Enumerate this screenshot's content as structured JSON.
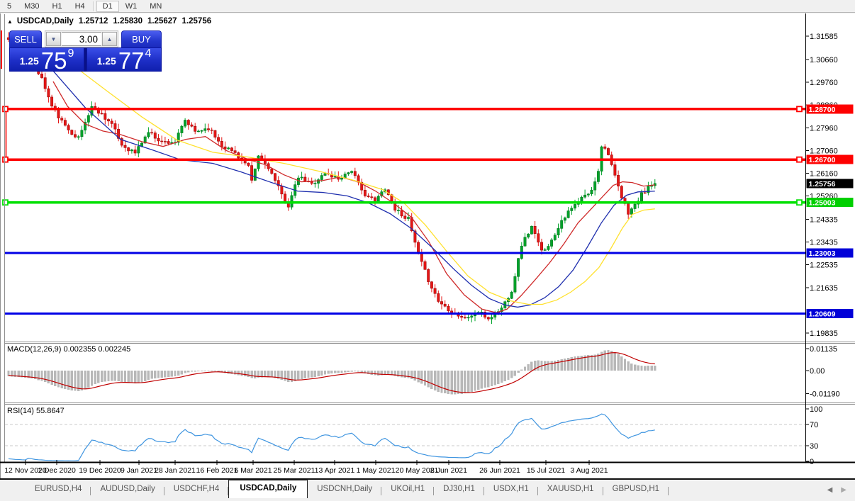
{
  "toolbar": {
    "timeframes": [
      {
        "label": "5",
        "active": false,
        "separator_before": false
      },
      {
        "label": "M30",
        "active": false,
        "separator_before": false
      },
      {
        "label": "H1",
        "active": false,
        "separator_before": false
      },
      {
        "label": "H4",
        "active": false,
        "separator_before": false
      },
      {
        "label": "D1",
        "active": true,
        "separator_before": true
      },
      {
        "label": "W1",
        "active": false,
        "separator_before": false
      },
      {
        "label": "MN",
        "active": false,
        "separator_before": false
      }
    ]
  },
  "chart_header": {
    "collapse_icon": "▲",
    "symbol": "USDCAD,Daily",
    "open": "1.25712",
    "high": "1.25830",
    "low": "1.25627",
    "close": "1.25756"
  },
  "trade_panel": {
    "sell_label": "SELL",
    "buy_label": "BUY",
    "volume": "3.00",
    "volume_down_icon": "▼",
    "volume_up_icon": "▲",
    "sell_price": {
      "prefix": "1.25",
      "big": "75",
      "sup": "9"
    },
    "buy_price": {
      "prefix": "1.25",
      "big": "77",
      "sup": "4"
    }
  },
  "macd": {
    "label": "MACD(12,26,9) 0.002355 0.002245",
    "axis": [
      "0.01135",
      "0.00",
      "-0.01190"
    ]
  },
  "rsi": {
    "label": "RSI(14) 55.8647",
    "axis": [
      "100",
      "70",
      "30",
      "0"
    ]
  },
  "tabs": {
    "items": [
      {
        "label": "EURUSD,H4",
        "active": false
      },
      {
        "label": "AUDUSD,Daily",
        "active": false
      },
      {
        "label": "USDCHF,H4",
        "active": false
      },
      {
        "label": "USDCAD,Daily",
        "active": true
      },
      {
        "label": "USDCNH,Daily",
        "active": false
      },
      {
        "label": "UKOil,H1",
        "active": false
      },
      {
        "label": "DJ30,H1",
        "active": false
      },
      {
        "label": "USDX,H1",
        "active": false
      },
      {
        "label": "XAUUSD,H1",
        "active": false
      },
      {
        "label": "GBPUSD,H1",
        "active": false
      }
    ],
    "scroll_left_icon": "◀",
    "scroll_right_icon": "▶"
  },
  "colors": {
    "bull": "#00a32a",
    "bull_dark": "#006a18",
    "bear": "#e51616",
    "bear_dark": "#8f0606",
    "ma_fast": "#cf2a2a",
    "ma_mid": "#1f2fae",
    "ma_slow": "#ffe12e",
    "level_red": "#fe0100",
    "level_green": "#00e002",
    "level_blue": "#0100e6",
    "tag_red": "#fe0100",
    "tag_green": "#00cf00",
    "tag_blue": "#0100d8",
    "tag_black": "#000000",
    "macd_hist": "#b8b8b8",
    "macd_signal": "#c00000",
    "rsi_line": "#3f95e0",
    "grid_dash": "#c9c9c9"
  },
  "chart_data": {
    "type": "candlestick",
    "symbol": "USDCAD",
    "timeframe": "Daily",
    "ohlc_display": {
      "open": 1.25712,
      "high": 1.2583,
      "low": 1.25627,
      "close": 1.25756
    },
    "current_price": {
      "value": 1.25756,
      "label": "1.25756"
    },
    "y_axis": {
      "min": 1.19835,
      "max": 1.31585,
      "ticks": [
        "1.31585",
        "1.30660",
        "1.29760",
        "1.28860",
        "1.27960",
        "1.27060",
        "1.26160",
        "1.25260",
        "1.24335",
        "1.23435",
        "1.22535",
        "1.21635",
        "1.19835"
      ]
    },
    "x_axis": {
      "labels": [
        [
          "12 Nov 2020",
          36
        ],
        [
          "1 Dec 2020",
          80
        ],
        [
          "19 Dec 2020",
          141
        ],
        [
          "9 Jan 2021",
          196
        ],
        [
          "28 Jan 2021",
          247
        ],
        [
          "16 Feb 2021",
          306
        ],
        [
          "6 Mar 2021",
          357
        ],
        [
          "25 Mar 2021",
          415
        ],
        [
          "13 Apr 2021",
          472
        ],
        [
          "1 May 2021",
          530
        ],
        [
          "20 May 2021",
          588
        ],
        [
          "8 Jun 2021",
          633
        ],
        [
          "26 Jun 2021",
          705
        ],
        [
          "15 Jul 2021",
          770
        ],
        [
          "3 Aug 2021",
          831
        ]
      ]
    },
    "levels": [
      {
        "price": 1.287,
        "label": "1.28700",
        "color_key": "red",
        "thickness": 3.4,
        "handles": true
      },
      {
        "price": 1.267,
        "label": "1.26700",
        "color_key": "red",
        "thickness": 3.4,
        "handles": true
      },
      {
        "price": 1.25003,
        "label": "1.25003",
        "color_key": "green",
        "thickness": 3.6,
        "handles": true
      },
      {
        "price": 1.23003,
        "label": "1.23003",
        "color_key": "blue",
        "thickness": 2.8,
        "handles": false
      },
      {
        "price": 1.20609,
        "label": "1.20609",
        "color_key": "blue",
        "thickness": 2.8,
        "handles": false
      }
    ],
    "series_spec": {
      "days": 195,
      "seed": 11,
      "noise": 0.0017,
      "wick": 0.0022,
      "close_waypoints": [
        [
          -26,
          1.328
        ],
        [
          -13,
          1.323
        ],
        [
          0,
          1.314
        ],
        [
          6,
          1.309
        ],
        [
          10,
          1.299
        ],
        [
          13,
          1.288
        ],
        [
          17,
          1.28
        ],
        [
          21,
          1.2755
        ],
        [
          25,
          1.288
        ],
        [
          28,
          1.285
        ],
        [
          31,
          1.281
        ],
        [
          34,
          1.2727
        ],
        [
          38,
          1.2697
        ],
        [
          42,
          1.278
        ],
        [
          46,
          1.274
        ],
        [
          50,
          1.274
        ],
        [
          53,
          1.2824
        ],
        [
          56,
          1.278
        ],
        [
          60,
          1.2796
        ],
        [
          64,
          1.2727
        ],
        [
          68,
          1.2697
        ],
        [
          72,
          1.264
        ],
        [
          73,
          1.258
        ],
        [
          75,
          1.2683
        ],
        [
          78,
          1.264
        ],
        [
          82,
          1.253
        ],
        [
          84,
          1.2488
        ],
        [
          87,
          1.26
        ],
        [
          91,
          1.2573
        ],
        [
          95,
          1.2615
        ],
        [
          99,
          1.2595
        ],
        [
          103,
          1.2629
        ],
        [
          106,
          1.2545
        ],
        [
          110,
          1.2503
        ],
        [
          113,
          1.2559
        ],
        [
          116,
          1.2475
        ],
        [
          120,
          1.2433
        ],
        [
          123,
          1.2292
        ],
        [
          126,
          1.2194
        ],
        [
          129,
          1.211
        ],
        [
          133,
          1.2068
        ],
        [
          137,
          1.204
        ],
        [
          141,
          1.2068
        ],
        [
          144,
          1.204
        ],
        [
          148,
          1.2082
        ],
        [
          151,
          1.2152
        ],
        [
          154,
          1.2334
        ],
        [
          157,
          1.2404
        ],
        [
          160,
          1.2306
        ],
        [
          163,
          1.2348
        ],
        [
          166,
          1.2432
        ],
        [
          169,
          1.2475
        ],
        [
          172,
          1.2517
        ],
        [
          175,
          1.2545
        ],
        [
          177,
          1.2629
        ],
        [
          178,
          1.2727
        ],
        [
          180,
          1.2697
        ],
        [
          182,
          1.26
        ],
        [
          184,
          1.2517
        ],
        [
          186,
          1.2461
        ],
        [
          188,
          1.2489
        ],
        [
          190,
          1.2531
        ],
        [
          192,
          1.2559
        ],
        [
          194,
          1.25756
        ]
      ]
    },
    "moving_averages": [
      {
        "name": "ma-fast-red",
        "color_key": "ma_fast",
        "points": [
          [
            13.4,
            1.2979
          ],
          [
            17.7,
            1.2881
          ],
          [
            23,
            1.2811
          ],
          [
            28.3,
            1.2783
          ],
          [
            33.6,
            1.2769
          ],
          [
            40,
            1.2741
          ],
          [
            46.4,
            1.2722
          ],
          [
            53.2,
            1.275
          ],
          [
            59.1,
            1.2761
          ],
          [
            65.5,
            1.2705
          ],
          [
            71.9,
            1.2671
          ],
          [
            77.2,
            1.2649
          ],
          [
            82.6,
            1.261
          ],
          [
            87.9,
            1.2582
          ],
          [
            94.3,
            1.2587
          ],
          [
            99.6,
            1.2601
          ],
          [
            104.9,
            1.2582
          ],
          [
            110.2,
            1.2545
          ],
          [
            115.5,
            1.2498
          ],
          [
            120.9,
            1.2442
          ],
          [
            126.2,
            1.2344
          ],
          [
            131.5,
            1.2218
          ],
          [
            136.8,
            1.2134
          ],
          [
            142.1,
            1.2078
          ],
          [
            146.4,
            1.2064
          ],
          [
            149.6,
            1.2078
          ],
          [
            153.8,
            1.2131
          ],
          [
            158.1,
            1.2195
          ],
          [
            162.3,
            1.226
          ],
          [
            166.6,
            1.2335
          ],
          [
            170.9,
            1.2419
          ],
          [
            175.1,
            1.2478
          ],
          [
            178.7,
            1.2529
          ],
          [
            181.5,
            1.2568
          ],
          [
            184.3,
            1.2582
          ],
          [
            187.2,
            1.2579
          ],
          [
            190.6,
            1.2565
          ],
          [
            194,
            1.257
          ]
        ]
      },
      {
        "name": "ma-mid-blue",
        "color_key": "ma_mid",
        "points": [
          [
            13.4,
            1.3021
          ],
          [
            23,
            1.2876
          ],
          [
            33.6,
            1.275
          ],
          [
            43.2,
            1.2708
          ],
          [
            51.7,
            1.2669
          ],
          [
            61.3,
            1.2655
          ],
          [
            69.8,
            1.2621
          ],
          [
            78.3,
            1.2582
          ],
          [
            86.8,
            1.2545
          ],
          [
            94.3,
            1.254
          ],
          [
            101.7,
            1.2526
          ],
          [
            108.1,
            1.2498
          ],
          [
            114.5,
            1.2456
          ],
          [
            120.9,
            1.2397
          ],
          [
            127.2,
            1.2321
          ],
          [
            133.6,
            1.2237
          ],
          [
            138.9,
            1.2173
          ],
          [
            144.3,
            1.212
          ],
          [
            148.9,
            1.2095
          ],
          [
            152.8,
            1.2086
          ],
          [
            156.6,
            1.2095
          ],
          [
            160.9,
            1.2123
          ],
          [
            165.1,
            1.2167
          ],
          [
            169.4,
            1.2232
          ],
          [
            173.6,
            1.2321
          ],
          [
            177.9,
            1.2419
          ],
          [
            181.7,
            1.2489
          ],
          [
            185.5,
            1.2529
          ],
          [
            188.9,
            1.2542
          ],
          [
            194,
            1.2545
          ]
        ]
      },
      {
        "name": "ma-slow-yellow",
        "color_key": "ma_slow",
        "points": [
          [
            20.4,
            1.3033
          ],
          [
            29.4,
            1.2943
          ],
          [
            40,
            1.2839
          ],
          [
            50.6,
            1.2747
          ],
          [
            61.3,
            1.2699
          ],
          [
            71.9,
            1.268
          ],
          [
            82.6,
            1.2655
          ],
          [
            93.2,
            1.2624
          ],
          [
            103.8,
            1.2587
          ],
          [
            112.3,
            1.2551
          ],
          [
            118.7,
            1.2498
          ],
          [
            125.1,
            1.2411
          ],
          [
            131.5,
            1.2307
          ],
          [
            137.9,
            1.2209
          ],
          [
            144.3,
            1.2145
          ],
          [
            150.6,
            1.2111
          ],
          [
            156,
            1.2097
          ],
          [
            160.2,
            1.2097
          ],
          [
            164.5,
            1.2114
          ],
          [
            168.7,
            1.2145
          ],
          [
            173,
            1.2187
          ],
          [
            177.2,
            1.2243
          ],
          [
            180.9,
            1.2321
          ],
          [
            184.3,
            1.24
          ],
          [
            187.2,
            1.2453
          ],
          [
            190.6,
            1.247
          ],
          [
            194,
            1.2475
          ]
        ]
      }
    ],
    "indicators": {
      "macd": {
        "fast": 12,
        "slow": 26,
        "signal": 9,
        "value": 0.002355,
        "signal_value": 0.002245,
        "axis_max": 0.01135,
        "axis_min": -0.0119
      },
      "rsi": {
        "period": 14,
        "value": 55.8647,
        "levels": [
          70,
          30
        ]
      }
    }
  }
}
